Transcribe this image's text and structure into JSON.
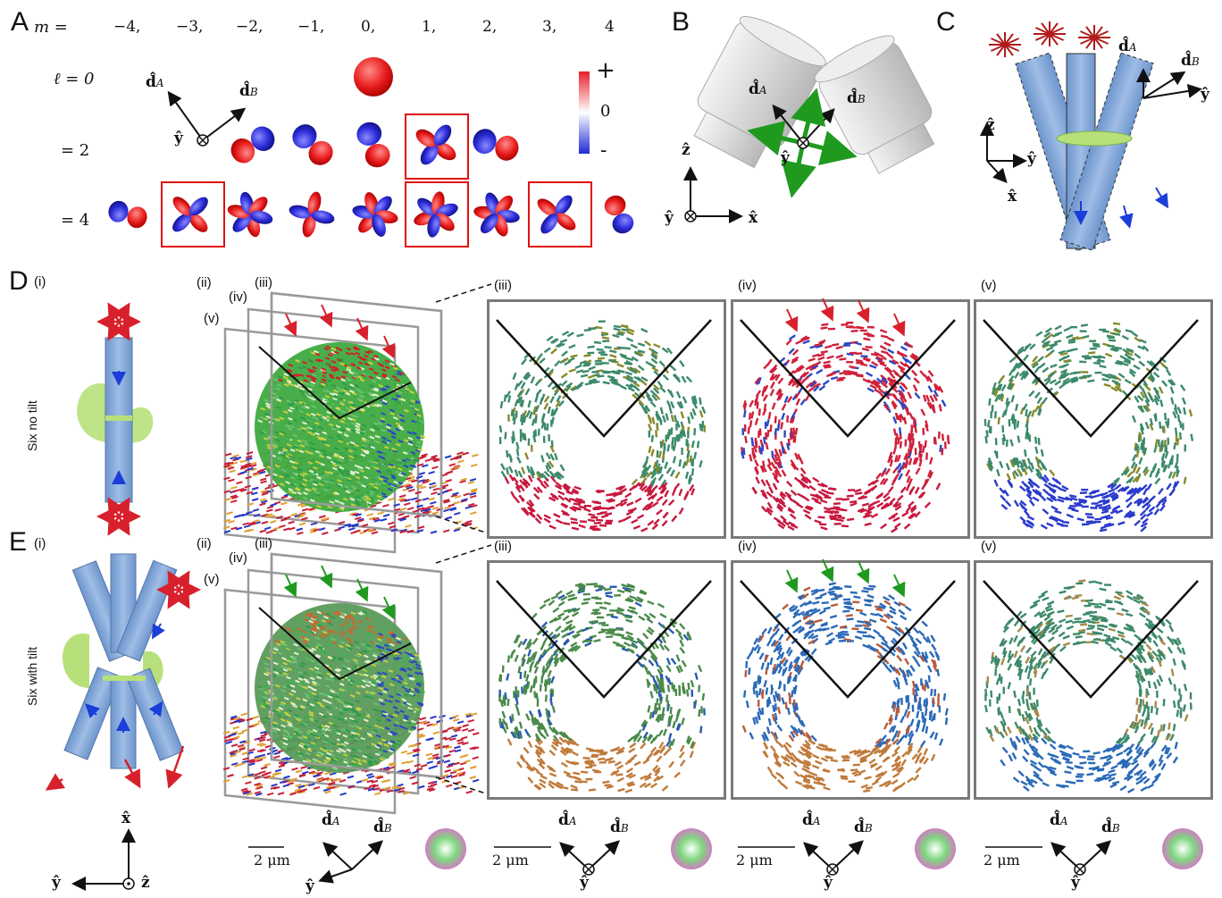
{
  "panels": {
    "A": "A",
    "B": "B",
    "C": "C",
    "D": "D",
    "E": "E"
  },
  "panel_a": {
    "m_label": "m =",
    "m_values": [
      "−4,",
      "−3,",
      "−2,",
      "−1,",
      "0,",
      "1,",
      "2,",
      "3,",
      "4"
    ],
    "rows": [
      "ℓ = 0",
      "= 2",
      "= 4"
    ],
    "colorbar": {
      "plus": "+",
      "zero": "0",
      "minus": "-",
      "colors": [
        "#e8202a",
        "#ffffff",
        "#1f2ad6"
      ]
    },
    "axes": {
      "dA": "d̂",
      "dA_sub": "A",
      "dB": "d̂",
      "dB_sub": "B",
      "y": "ŷ"
    }
  },
  "panel_b": {
    "dA": "d̂",
    "dA_sub": "A",
    "dB": "d̂",
    "dB_sub": "B",
    "y": "ŷ",
    "z": "ẑ",
    "x": "x̂",
    "y2": "ŷ"
  },
  "panel_c": {
    "dA": "d̂",
    "dA_sub": "A",
    "dB": "d̂",
    "dB_sub": "B",
    "y": "ŷ",
    "z": "ẑ",
    "x": "x̂",
    "y2": "ŷ"
  },
  "row_d": {
    "sub_i": "(i)",
    "side_label": "Six no tilt",
    "stack_labels": [
      "(ii)",
      "(iii)",
      "(iv)",
      "(v)"
    ],
    "zoom_labels": [
      "(iii)",
      "(iv)",
      "(v)"
    ]
  },
  "row_e": {
    "sub_i": "(i)",
    "side_label": "Six with tilt",
    "stack_labels": [
      "(ii)",
      "(iii)",
      "(iv)",
      "(v)"
    ],
    "zoom_labels": [
      "(iii)",
      "(iv)",
      "(v)"
    ]
  },
  "bottom": {
    "axes_x": "x̂",
    "axes_y": "ŷ",
    "axes_z": "ẑ",
    "scale_bars": [
      "2 μm",
      "2 μm",
      "2 μm",
      "2 μm"
    ],
    "dA": "d̂",
    "dA_sub": "A",
    "dB": "d̂",
    "dB_sub": "B",
    "y": "ŷ"
  },
  "colors": {
    "red": "#d8202c",
    "blue_rod": "#7fa6d8",
    "green": "#1f8a1f",
    "frame": "#7a7a7a",
    "gray_lobe": "#cfcfcf"
  }
}
